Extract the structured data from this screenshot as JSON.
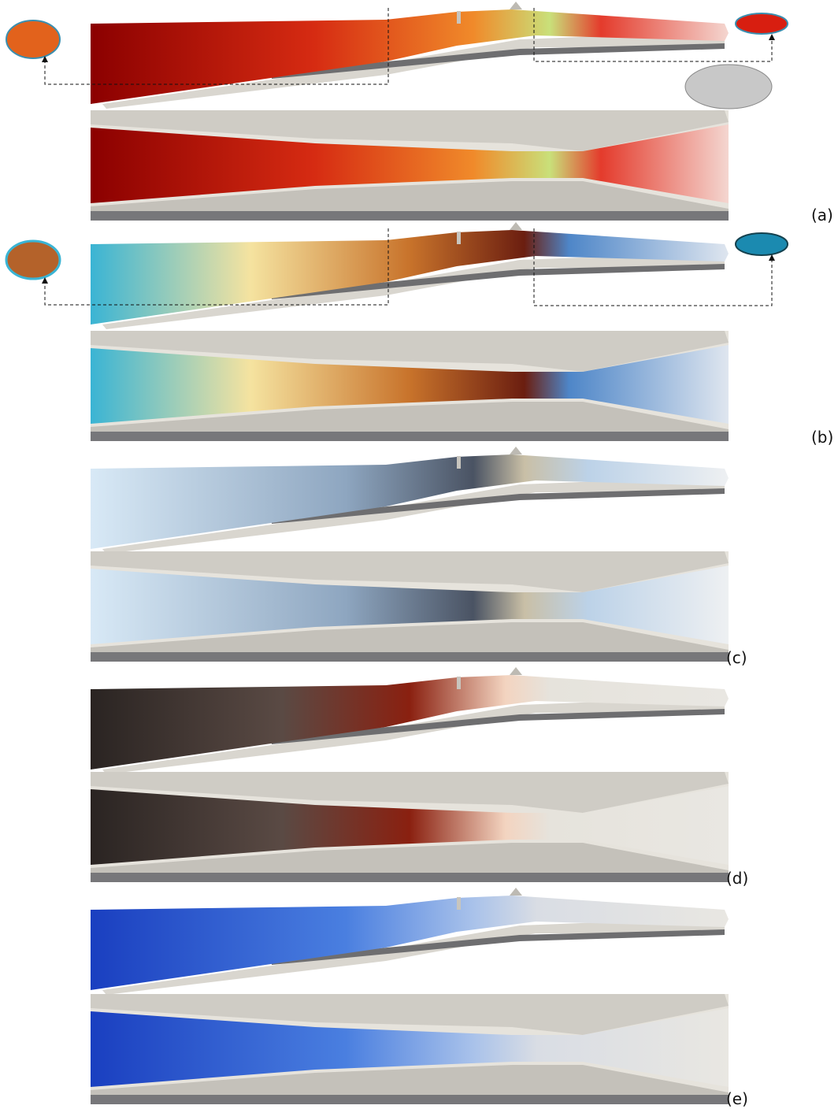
{
  "panel_labels": [
    "(a)",
    "(b)",
    "(c)",
    "(d)",
    "(e)"
  ]
}
